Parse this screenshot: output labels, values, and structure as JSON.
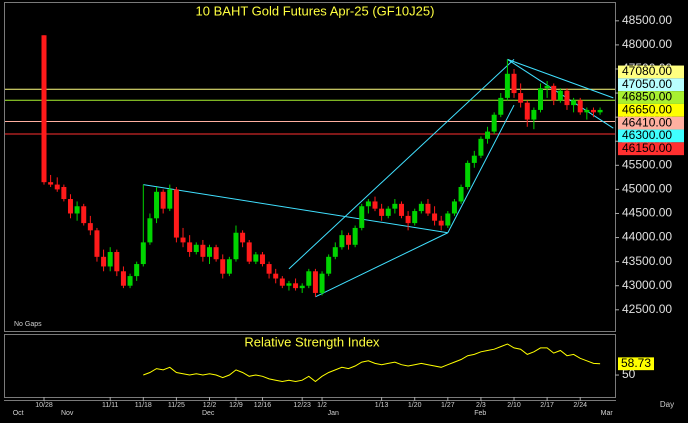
{
  "chart_data": {
    "type": "candlestick",
    "title": "10 BAHT Gold Futures Apr-25 (GF10J25)",
    "footnote": "No Gaps",
    "period": "Day",
    "categories": [
      "10/28",
      null,
      null,
      null,
      null,
      null,
      null,
      null,
      null,
      null,
      "11/11",
      null,
      null,
      null,
      null,
      "11/18",
      null,
      null,
      null,
      null,
      "11/25",
      null,
      null,
      null,
      null,
      "12/2",
      null,
      null,
      null,
      "12/9",
      null,
      null,
      null,
      "12/16",
      null,
      null,
      null,
      null,
      null,
      "12/23",
      null,
      null,
      "1/2",
      null,
      null,
      null,
      null,
      null,
      null,
      null,
      null,
      "1/13",
      null,
      null,
      null,
      null,
      "1/20",
      null,
      null,
      null,
      null,
      "1/27",
      null,
      null,
      null,
      null,
      "2/3",
      null,
      null,
      null,
      null,
      "2/10",
      null,
      null,
      null,
      null,
      "2/17",
      null,
      null,
      null,
      null,
      "2/24",
      null,
      null,
      null
    ],
    "months": [
      {
        "label": "Oct",
        "index": -3.9
      },
      {
        "label": "Nov",
        "index": 3.5
      },
      {
        "label": "Dec",
        "index": 24.8
      },
      {
        "label": "Jan",
        "index": 43.7
      },
      {
        "label": "Feb",
        "index": 65.9
      },
      {
        "label": "Mar",
        "index": 85
      }
    ],
    "open": [
      48200,
      45150,
      45100,
      45050,
      44800,
      44500,
      44650,
      44300,
      44150,
      43600,
      43400,
      43700,
      43300,
      43000,
      43200,
      43450,
      43900,
      44400,
      44950,
      44600,
      45000,
      44000,
      43900,
      43700,
      43850,
      43600,
      43800,
      43550,
      43250,
      43550,
      44100,
      43900,
      43500,
      43650,
      43450,
      43250,
      43150,
      43000,
      43050,
      42950,
      43000,
      43300,
      42850,
      43250,
      43600,
      43800,
      44050,
      43850,
      44200,
      44650,
      44750,
      44600,
      44450,
      44600,
      44700,
      44450,
      44300,
      44550,
      44700,
      44500,
      44350,
      44250,
      44500,
      44750,
      45050,
      45550,
      45700,
      46050,
      46200,
      46550,
      46900,
      47400,
      47000,
      46800,
      46450,
      46650,
      47100,
      47150,
      46850,
      47050,
      46750,
      46850,
      46600,
      46650,
      46600
    ],
    "high": [
      48200,
      45300,
      45250,
      45100,
      44900,
      44750,
      44700,
      44450,
      44200,
      43750,
      43800,
      43750,
      43400,
      43250,
      43500,
      45100,
      44500,
      45050,
      45000,
      45100,
      45050,
      44200,
      44050,
      43900,
      43950,
      43850,
      43850,
      43650,
      43600,
      44250,
      44150,
      43950,
      43700,
      43700,
      43500,
      43350,
      43200,
      43100,
      43150,
      43050,
      43350,
      43350,
      43300,
      43650,
      43900,
      44150,
      44100,
      44250,
      44700,
      44800,
      44850,
      44700,
      44650,
      44800,
      44750,
      44550,
      44600,
      44750,
      44800,
      44650,
      44450,
      44550,
      44800,
      45100,
      45600,
      45800,
      46100,
      46300,
      46600,
      47000,
      47700,
      47500,
      47200,
      46850,
      46700,
      47200,
      47250,
      47200,
      47100,
      47100,
      46900,
      46900,
      46700,
      46700,
      46700
    ],
    "low": [
      45100,
      45050,
      44950,
      44750,
      44400,
      44350,
      44250,
      44050,
      43500,
      43300,
      43300,
      43200,
      42950,
      42950,
      43100,
      43400,
      43850,
      44300,
      44500,
      44550,
      43900,
      43800,
      43600,
      43650,
      43500,
      43450,
      43500,
      43150,
      43200,
      43500,
      43800,
      43450,
      43450,
      43400,
      43150,
      43050,
      42950,
      42900,
      42900,
      42850,
      42950,
      42770,
      42800,
      43200,
      43550,
      43750,
      43750,
      43800,
      44150,
      44500,
      44550,
      44350,
      44400,
      44500,
      44400,
      44150,
      44250,
      44500,
      44450,
      44250,
      44150,
      44200,
      44450,
      44700,
      45000,
      45450,
      45650,
      45950,
      46150,
      46500,
      46850,
      46900,
      46700,
      46300,
      46250,
      46600,
      46900,
      46750,
      46800,
      46650,
      46600,
      46550,
      46450,
      46500,
      46550
    ],
    "close": [
      45150,
      45100,
      45000,
      44800,
      44500,
      44650,
      44300,
      44150,
      43600,
      43400,
      43700,
      43300,
      43000,
      43200,
      43450,
      43900,
      44400,
      44950,
      44600,
      45000,
      44000,
      43900,
      43700,
      43850,
      43600,
      43800,
      43550,
      43250,
      43550,
      44100,
      43900,
      43500,
      43650,
      43450,
      43250,
      43150,
      43000,
      43050,
      42950,
      43000,
      43300,
      42850,
      43250,
      43600,
      43800,
      44050,
      43850,
      44200,
      44650,
      44750,
      44600,
      44450,
      44600,
      44700,
      44450,
      44300,
      44550,
      44700,
      44500,
      44350,
      44250,
      44500,
      44750,
      45050,
      45550,
      45700,
      46050,
      46200,
      46550,
      46900,
      47400,
      47000,
      46800,
      46450,
      46650,
      47100,
      47150,
      46850,
      47050,
      46750,
      46850,
      46600,
      46650,
      46600,
      46650
    ],
    "up_color": "#00d400",
    "down_color": "#ff1a1a",
    "ylim": [
      42060,
      48870
    ],
    "yticks": [
      {
        "value": 48500,
        "label": "48500.00"
      },
      {
        "value": 48000,
        "label": "48000.00"
      },
      {
        "value": 47500,
        "label": "47500.00"
      },
      {
        "value": 47000,
        "label": "47000.00"
      },
      {
        "value": 46500,
        "label": "46500.00"
      },
      {
        "value": 46000,
        "label": "46000.00"
      },
      {
        "value": 45500,
        "label": "45500.00"
      },
      {
        "value": 45000,
        "label": "45000.00"
      },
      {
        "value": 44500,
        "label": "44500.00"
      },
      {
        "value": 44000,
        "label": "44000.00"
      },
      {
        "value": 43500,
        "label": "43500.00"
      },
      {
        "value": 43000,
        "label": "43000.00"
      },
      {
        "value": 42500,
        "label": "42500.00"
      }
    ],
    "levels": [
      {
        "value": 47080,
        "label": "47080.00",
        "color": "#ffff80",
        "line": true
      },
      {
        "value": 47050,
        "label": "47050.00",
        "color": "#b8ffff",
        "line": false
      },
      {
        "value": 46850,
        "label": "46850.00",
        "color": "#a8f030",
        "line": true
      },
      {
        "value": 46650,
        "label": "46650.00",
        "color": "#ffff00",
        "line": false
      },
      {
        "value": 46410,
        "label": "46410.00",
        "color": "#ffb0a0",
        "line": true
      },
      {
        "value": 46300,
        "label": "46300.00",
        "color": "#40ffff",
        "line": false
      },
      {
        "value": 46150,
        "label": "46150.00",
        "color": "#ff3030",
        "line": true
      }
    ],
    "trendlines": [
      {
        "x": [
          15,
          61
        ],
        "y": [
          45100,
          44100
        ]
      },
      {
        "x": [
          37,
          71
        ],
        "y": [
          43350,
          47700
        ]
      },
      {
        "x": [
          41,
          61
        ],
        "y": [
          42770,
          44100
        ]
      },
      {
        "x": [
          61,
          71
        ],
        "y": [
          44100,
          46750
        ]
      },
      {
        "x": [
          70,
          86
        ],
        "y": [
          47700,
          46900
        ]
      },
      {
        "x": [
          70,
          86
        ],
        "y": [
          47700,
          46270
        ]
      }
    ],
    "trendline_color": "#40e0ff",
    "rsi": {
      "title": "Relative Strength Index",
      "color": "#ffff00",
      "ylim": [
        33,
        81
      ],
      "yticks": [
        50
      ],
      "values": [
        null,
        null,
        null,
        null,
        null,
        null,
        null,
        null,
        null,
        null,
        null,
        null,
        null,
        null,
        null,
        50,
        52,
        55,
        54,
        56,
        52,
        51,
        50,
        51,
        50,
        51,
        50,
        48,
        50,
        54,
        52,
        49,
        50,
        49,
        47,
        46,
        45,
        46,
        45,
        46,
        49,
        45,
        49,
        52,
        54,
        56,
        55,
        57,
        60,
        61,
        59,
        58,
        59,
        60,
        58,
        57,
        58,
        59,
        58,
        57,
        56,
        58,
        60,
        62,
        65,
        66,
        68,
        69,
        70,
        72,
        74,
        71,
        70,
        66,
        68,
        71,
        71,
        67,
        69,
        65,
        66,
        63,
        61,
        59,
        58.73
      ]
    }
  }
}
